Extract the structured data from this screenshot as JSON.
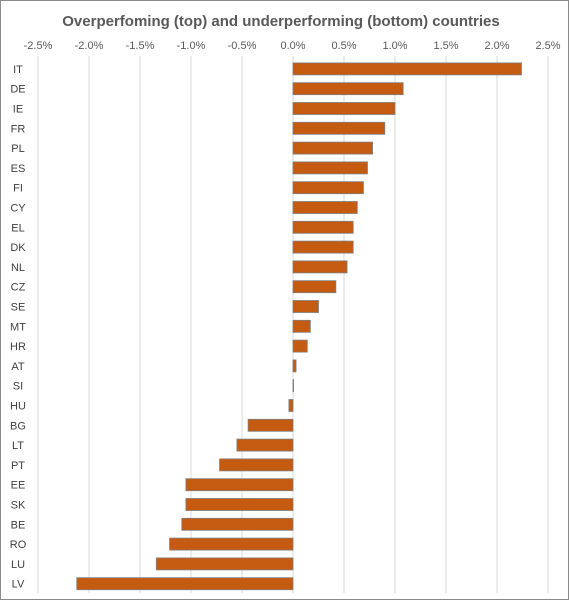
{
  "chart_data": {
    "type": "bar",
    "orientation": "horizontal",
    "title": "Overperfoming (top) and underperforming (bottom) countries",
    "xlabel": "",
    "ylabel": "",
    "xlim": [
      -2.5,
      2.5
    ],
    "xticks": [
      -2.5,
      -2.0,
      -1.5,
      -1.0,
      -0.5,
      0.0,
      0.5,
      1.0,
      1.5,
      2.0,
      2.5
    ],
    "xtick_labels": [
      "-2.5%",
      "-2.0%",
      "-1.5%",
      "-1.0%",
      "-0.5%",
      "0.0%",
      "0.5%",
      "1.0%",
      "1.5%",
      "2.0%",
      "2.5%"
    ],
    "x_axis_position": "top",
    "unit": "%",
    "grid": true,
    "legend": "none",
    "bar_color": "#C55A11",
    "bar_edge_color": "#7f7f7f",
    "categories": [
      "IT",
      "DE",
      "IE",
      "FR",
      "PL",
      "ES",
      "FI",
      "CY",
      "EL",
      "DK",
      "NL",
      "CZ",
      "SE",
      "MT",
      "HR",
      "AT",
      "SI",
      "HU",
      "BG",
      "LT",
      "PT",
      "EE",
      "SK",
      "BE",
      "RO",
      "LU",
      "LV"
    ],
    "values": [
      2.24,
      1.08,
      1.0,
      0.9,
      0.78,
      0.73,
      0.69,
      0.63,
      0.59,
      0.59,
      0.53,
      0.42,
      0.25,
      0.17,
      0.14,
      0.03,
      0.0,
      -0.04,
      -0.44,
      -0.55,
      -0.72,
      -1.05,
      -1.05,
      -1.09,
      -1.21,
      -1.34,
      -2.12
    ]
  }
}
